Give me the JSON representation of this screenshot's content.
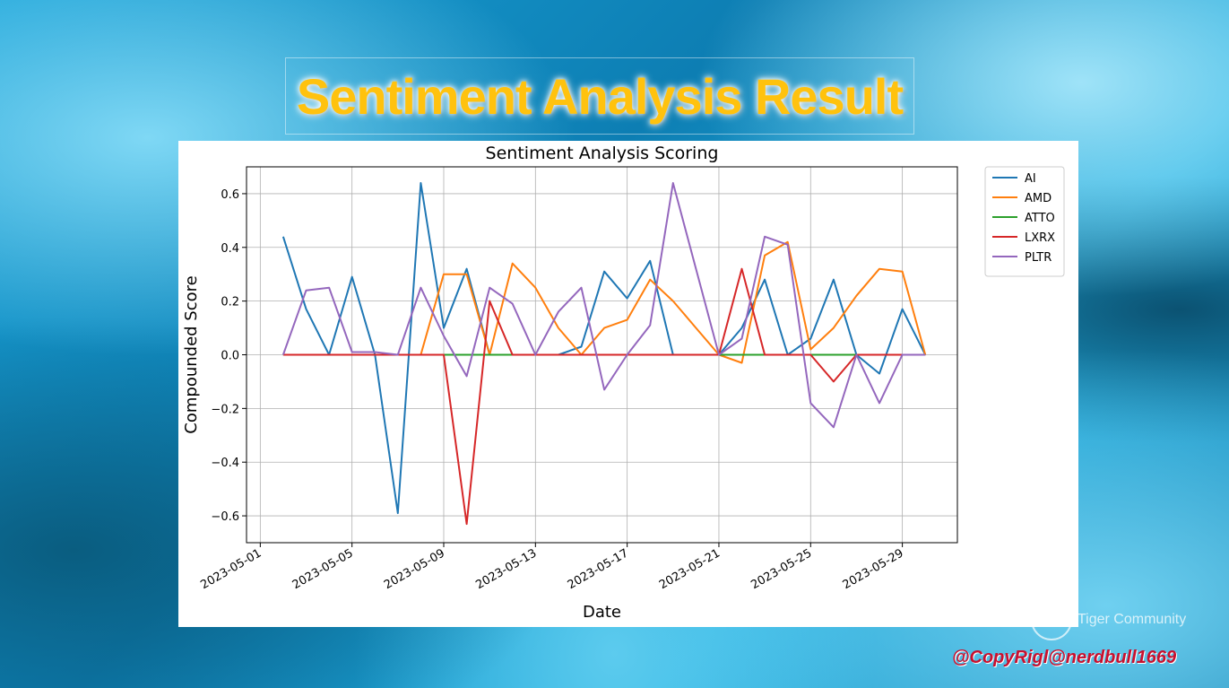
{
  "slide": {
    "title": "Sentiment Analysis Result",
    "brand": "Tiger Community",
    "copyright": "@CopyRigl@nerdbull1669"
  },
  "chart_data": {
    "type": "line",
    "title": "Sentiment Analysis Scoring",
    "xlabel": "Date",
    "ylabel": "Compounded Score",
    "xlim": [
      "2023-05-01",
      "2023-05-30"
    ],
    "ylim": [
      -0.7,
      0.7
    ],
    "yticks": [
      -0.6,
      -0.4,
      -0.2,
      0.0,
      0.2,
      0.4,
      0.6
    ],
    "ytick_labels": [
      "−0.6",
      "−0.4",
      "−0.2",
      "0.0",
      "0.2",
      "0.4",
      "0.6"
    ],
    "xticks": [
      "2023-05-01",
      "2023-05-05",
      "2023-05-09",
      "2023-05-13",
      "2023-05-17",
      "2023-05-21",
      "2023-05-25",
      "2023-05-29"
    ],
    "grid": true,
    "legend": "upper-right-outside",
    "x": [
      "2023-05-02",
      "2023-05-03",
      "2023-05-04",
      "2023-05-05",
      "2023-05-06",
      "2023-05-07",
      "2023-05-08",
      "2023-05-09",
      "2023-05-10",
      "2023-05-11",
      "2023-05-12",
      "2023-05-13",
      "2023-05-14",
      "2023-05-15",
      "2023-05-16",
      "2023-05-17",
      "2023-05-18",
      "2023-05-19",
      "2023-05-20",
      "2023-05-21",
      "2023-05-22",
      "2023-05-23",
      "2023-05-24",
      "2023-05-25",
      "2023-05-26",
      "2023-05-27",
      "2023-05-28",
      "2023-05-29",
      "2023-05-30"
    ],
    "series": [
      {
        "name": "AI",
        "color": "#1f77b4",
        "values": [
          0.44,
          0.17,
          0.0,
          0.29,
          0.0,
          -0.59,
          0.64,
          0.1,
          0.32,
          0.0,
          0.0,
          0.0,
          0.0,
          0.03,
          0.31,
          0.21,
          0.35,
          0.0,
          0.0,
          0.0,
          0.1,
          0.28,
          0.0,
          0.06,
          0.28,
          0.0,
          -0.07,
          0.17,
          0.0
        ]
      },
      {
        "name": "AMD",
        "color": "#ff7f0e",
        "values": [
          0.0,
          0.0,
          0.0,
          0.0,
          0.0,
          0.0,
          0.0,
          0.3,
          0.3,
          0.0,
          0.34,
          0.25,
          0.1,
          0.0,
          0.1,
          0.13,
          0.28,
          0.2,
          0.1,
          0.0,
          -0.03,
          0.37,
          0.42,
          0.02,
          0.1,
          0.22,
          0.32,
          0.31,
          0.0
        ]
      },
      {
        "name": "ATTO",
        "color": "#2ca02c",
        "values": [
          0.0,
          0.0,
          0.0,
          0.0,
          0.0,
          0.0,
          0.0,
          0.0,
          0.0,
          0.0,
          0.0,
          0.0,
          0.0,
          0.0,
          0.0,
          0.0,
          0.0,
          0.0,
          0.0,
          0.0,
          0.0,
          0.0,
          0.0,
          0.0,
          0.0,
          0.0,
          0.0,
          0.0,
          0.0
        ]
      },
      {
        "name": "LXRX",
        "color": "#d62728",
        "values": [
          0.0,
          0.0,
          0.0,
          0.0,
          0.0,
          0.0,
          0.0,
          0.0,
          -0.63,
          0.2,
          0.0,
          0.0,
          0.0,
          0.0,
          0.0,
          0.0,
          0.0,
          0.0,
          0.0,
          0.0,
          0.32,
          0.0,
          0.0,
          0.0,
          -0.1,
          0.0,
          0.0,
          0.0,
          0.0
        ]
      },
      {
        "name": "PLTR",
        "color": "#9467bd",
        "values": [
          0.0,
          0.24,
          0.25,
          0.01,
          0.01,
          0.0,
          0.25,
          0.07,
          -0.08,
          0.25,
          0.19,
          0.0,
          0.16,
          0.25,
          -0.13,
          0.0,
          0.11,
          0.64,
          0.32,
          0.0,
          0.06,
          0.44,
          0.41,
          -0.18,
          -0.27,
          0.0,
          -0.18,
          0.0,
          0.0
        ]
      }
    ]
  }
}
